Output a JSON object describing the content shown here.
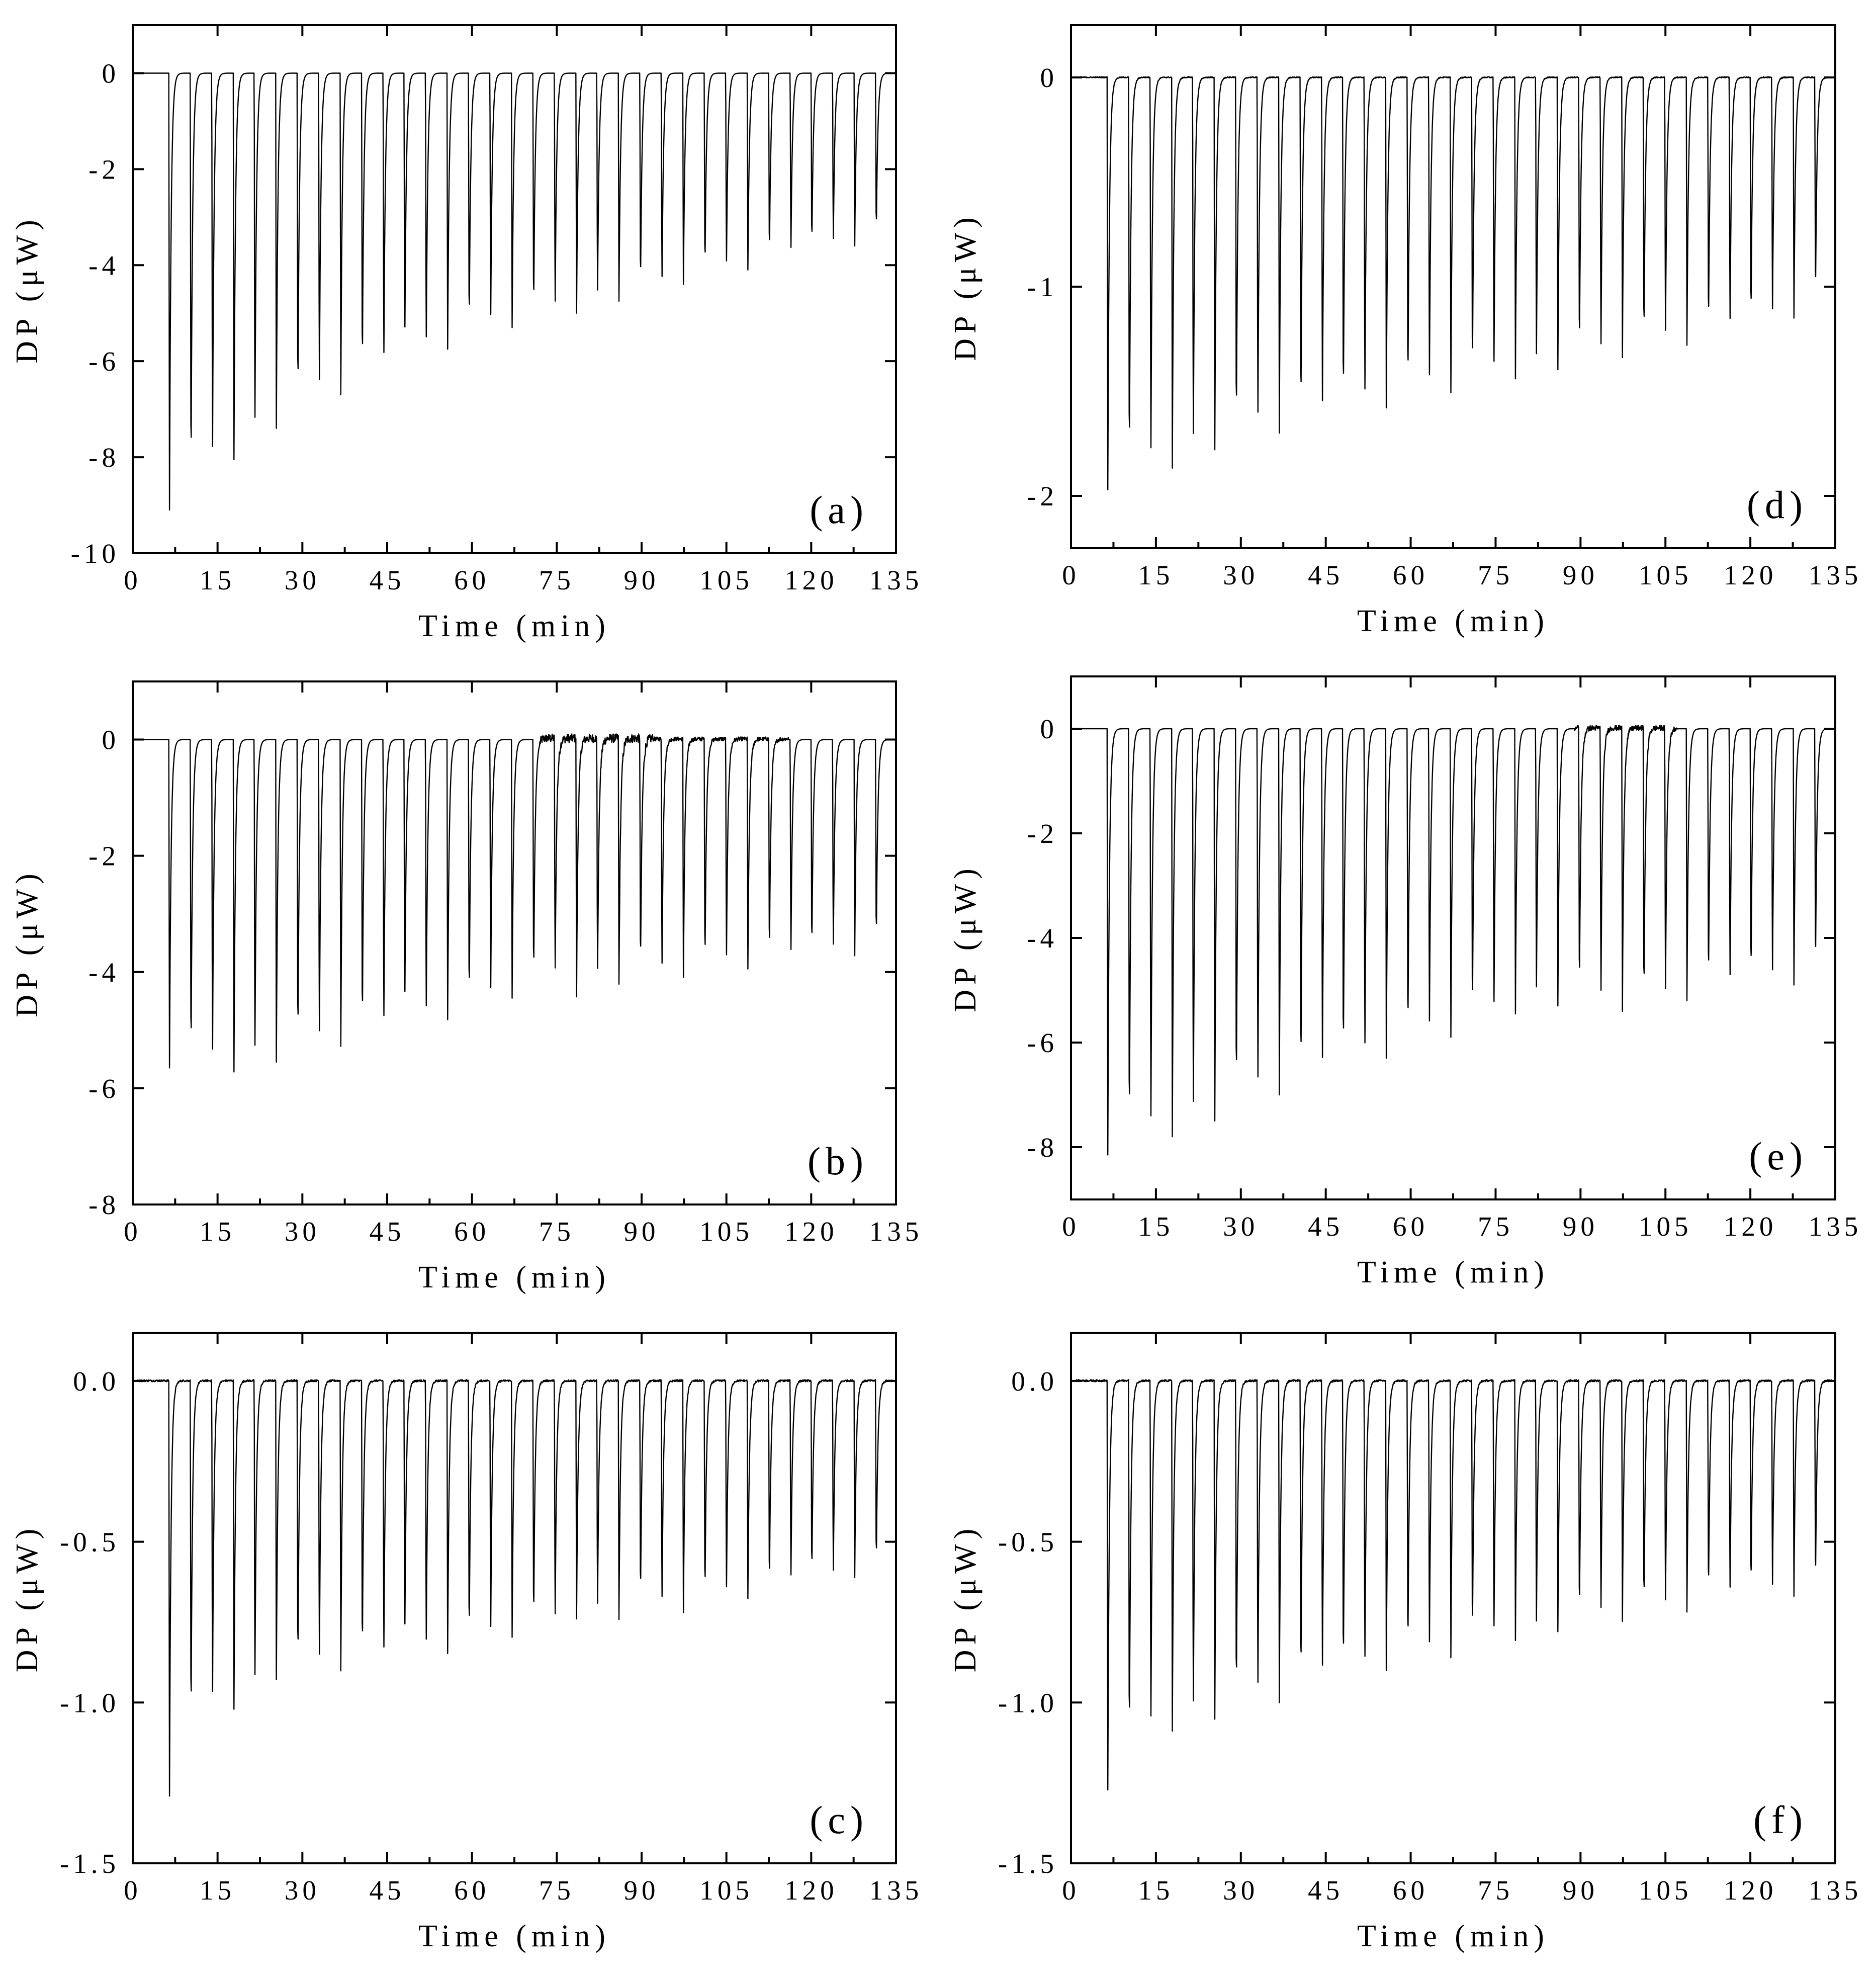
{
  "chart_data": [
    {
      "type": "line",
      "panel_label": "(a)",
      "xlabel": "Time (min)",
      "ylabel": "DP (μW)",
      "xlim": [
        0,
        135
      ],
      "ylim": [
        -10,
        1
      ],
      "xticks": [
        0,
        15,
        30,
        45,
        60,
        75,
        90,
        105,
        120,
        135
      ],
      "yticks": [
        0,
        -2,
        -4,
        -6,
        -8,
        -10
      ],
      "yticklabels": [
        "0",
        "-2",
        "-4",
        "-6",
        "-8",
        "-10"
      ],
      "baseline": 0,
      "noise": [],
      "peaks": {
        "t": [
          6.5,
          10.3,
          14.1,
          17.9,
          21.6,
          25.4,
          29.2,
          33.0,
          36.8,
          40.6,
          44.4,
          48.1,
          51.9,
          55.7,
          59.5,
          63.3,
          67.1,
          70.9,
          74.7,
          78.5,
          82.2,
          86.0,
          89.8,
          93.6,
          97.4,
          101.2,
          105.0,
          108.8,
          112.6,
          116.4,
          120.1,
          123.9,
          127.7,
          131.5
        ],
        "depth": [
          -9.1,
          -8.75,
          -8.35,
          -8.05,
          -7.7,
          -7.4,
          -7.1,
          -6.85,
          -6.7,
          -6.5,
          -6.25,
          -6.1,
          -5.9,
          -5.75,
          -5.55,
          -5.4,
          -5.3,
          -5.2,
          -5.1,
          -5.0,
          -4.85,
          -4.75,
          -4.65,
          -4.55,
          -4.4,
          -4.3,
          -4.2,
          -4.1,
          -4.0,
          -3.9,
          -3.8,
          -3.7,
          -3.6,
          -3.5
        ]
      }
    },
    {
      "type": "line",
      "panel_label": "(b)",
      "xlabel": "Time (min)",
      "ylabel": "DP (μW)",
      "xlim": [
        0,
        135
      ],
      "ylim": [
        -8,
        1
      ],
      "xticks": [
        0,
        15,
        30,
        45,
        60,
        75,
        90,
        105,
        120,
        135
      ],
      "yticks": [
        0,
        -2,
        -4,
        -6,
        -8
      ],
      "yticklabels": [
        "0",
        "-2",
        "-4",
        "-6",
        "-8"
      ],
      "baseline": 0,
      "noise": [
        [
          72,
          92,
          0.15
        ],
        [
          92,
          116,
          0.07
        ]
      ],
      "peaks": {
        "t": [
          6.5,
          10.3,
          14.1,
          17.9,
          21.6,
          25.4,
          29.2,
          33.0,
          36.8,
          40.6,
          44.4,
          48.1,
          51.9,
          55.7,
          59.5,
          63.3,
          67.1,
          70.9,
          74.7,
          78.5,
          82.2,
          86.0,
          89.8,
          93.6,
          97.4,
          101.2,
          105.0,
          108.8,
          112.6,
          116.4,
          120.1,
          123.9,
          127.7,
          131.5
        ],
        "depth": [
          -5.65,
          -5.72,
          -5.72,
          -5.72,
          -5.65,
          -5.55,
          -5.45,
          -5.38,
          -5.28,
          -5.18,
          -5.1,
          -5.0,
          -4.92,
          -4.82,
          -4.72,
          -4.58,
          -4.45,
          -4.32,
          -4.3,
          -4.42,
          -4.32,
          -4.25,
          -4.2,
          -4.15,
          -4.1,
          -4.05,
          -4.0,
          -3.95,
          -3.92,
          -3.88,
          -3.83,
          -3.78,
          -3.72,
          -3.65
        ]
      }
    },
    {
      "type": "line",
      "panel_label": "(c)",
      "xlabel": "Time (min)",
      "ylabel": "DP (μW)",
      "xlim": [
        0,
        135
      ],
      "ylim": [
        -1.5,
        0.15
      ],
      "xticks": [
        0,
        15,
        30,
        45,
        60,
        75,
        90,
        105,
        120,
        135
      ],
      "yticks": [
        0.0,
        -0.5,
        -1.0,
        -1.5
      ],
      "yticklabels": [
        "0.0",
        "-0.5",
        "-1.0",
        "-1.5"
      ],
      "baseline": 0,
      "noise": [
        [
          0,
          135,
          0.006
        ]
      ],
      "peaks": {
        "t": [
          6.5,
          10.3,
          14.1,
          17.9,
          21.6,
          25.4,
          29.2,
          33.0,
          36.8,
          40.6,
          44.4,
          48.1,
          51.9,
          55.7,
          59.5,
          63.3,
          67.1,
          70.9,
          74.7,
          78.5,
          82.2,
          86.0,
          89.8,
          93.6,
          97.4,
          101.2,
          105.0,
          108.8,
          112.6,
          116.4,
          120.1,
          123.9,
          127.7,
          131.5
        ],
        "depth": [
          -1.29,
          -1.11,
          -1.04,
          -1.02,
          -0.98,
          -0.93,
          -0.93,
          -0.91,
          -0.9,
          -0.9,
          -0.89,
          -0.87,
          -0.86,
          -0.85,
          -0.84,
          -0.82,
          -0.8,
          -0.79,
          -0.78,
          -0.74,
          -0.74,
          -0.74,
          -0.71,
          -0.72,
          -0.72,
          -0.7,
          -0.69,
          -0.68,
          -0.67,
          -0.65,
          -0.64,
          -0.63,
          -0.61,
          -0.6
        ]
      }
    },
    {
      "type": "line",
      "panel_label": "(d)",
      "xlabel": "Time (min)",
      "ylabel": "DP (μW)",
      "xlim": [
        0,
        135
      ],
      "ylim": [
        -2.25,
        0.25
      ],
      "xticks": [
        0,
        15,
        30,
        45,
        60,
        75,
        90,
        105,
        120,
        135
      ],
      "yticks": [
        0,
        -1,
        -2
      ],
      "yticklabels": [
        "0",
        "-1",
        "-2"
      ],
      "baseline": 0,
      "noise": [
        [
          0,
          135,
          0.005
        ]
      ],
      "peaks": {
        "t": [
          6.5,
          10.3,
          14.1,
          17.9,
          21.6,
          25.4,
          29.2,
          33.0,
          36.8,
          40.6,
          44.4,
          48.1,
          51.9,
          55.7,
          59.5,
          63.3,
          67.1,
          70.9,
          74.7,
          78.5,
          82.2,
          86.0,
          89.8,
          93.6,
          97.4,
          101.2,
          105.0,
          108.8,
          112.6,
          116.4,
          120.1,
          123.9,
          127.7,
          131.5
        ],
        "depth": [
          -1.97,
          -1.93,
          -1.9,
          -1.87,
          -1.83,
          -1.78,
          -1.75,
          -1.72,
          -1.7,
          -1.68,
          -1.66,
          -1.63,
          -1.6,
          -1.58,
          -1.56,
          -1.53,
          -1.51,
          -1.49,
          -1.46,
          -1.44,
          -1.42,
          -1.4,
          -1.38,
          -1.37,
          -1.34,
          -1.32,
          -1.3,
          -1.28,
          -1.26,
          -1.24,
          -1.22,
          -1.19,
          -1.15,
          -1.1
        ]
      }
    },
    {
      "type": "line",
      "panel_label": "(e)",
      "xlabel": "Time (min)",
      "ylabel": "DP (μW)",
      "xlim": [
        0,
        135
      ],
      "ylim": [
        -9,
        1
      ],
      "xticks": [
        0,
        15,
        30,
        45,
        60,
        75,
        90,
        105,
        120,
        135
      ],
      "yticks": [
        0,
        -2,
        -4,
        -6,
        -8
      ],
      "yticklabels": [
        "0",
        "-2",
        "-4",
        "-6",
        "-8"
      ],
      "baseline": 0,
      "noise": [
        [
          89,
          107,
          0.1
        ]
      ],
      "peaks": {
        "t": [
          6.5,
          10.3,
          14.1,
          17.9,
          21.6,
          25.4,
          29.2,
          33.0,
          36.8,
          40.6,
          44.4,
          48.1,
          51.9,
          55.7,
          59.5,
          63.3,
          67.1,
          70.9,
          74.7,
          78.5,
          82.2,
          86.0,
          89.8,
          93.6,
          97.4,
          101.2,
          105.0,
          108.8,
          112.6,
          116.4,
          120.1,
          123.9,
          127.7,
          131.5
        ],
        "depth": [
          -8.15,
          -8.05,
          -7.95,
          -7.8,
          -7.65,
          -7.5,
          -7.3,
          -7.15,
          -7.0,
          -6.9,
          -6.75,
          -6.6,
          -6.45,
          -6.3,
          -6.15,
          -6.0,
          -5.9,
          -5.75,
          -5.6,
          -5.45,
          -5.3,
          -5.3,
          -5.3,
          -5.35,
          -5.4,
          -5.45,
          -5.35,
          -5.2,
          -5.1,
          -5.05,
          -5.0,
          -4.95,
          -4.9,
          -4.8
        ]
      }
    },
    {
      "type": "line",
      "panel_label": "(f)",
      "xlabel": "Time (min)",
      "ylabel": "DP (μW)",
      "xlim": [
        0,
        135
      ],
      "ylim": [
        -1.5,
        0.15
      ],
      "xticks": [
        0,
        15,
        30,
        45,
        60,
        75,
        90,
        105,
        120,
        135
      ],
      "yticks": [
        0.0,
        -0.5,
        -1.0,
        -1.5
      ],
      "yticklabels": [
        "0.0",
        "-0.5",
        "-1.0",
        "-1.5"
      ],
      "baseline": 0,
      "noise": [
        [
          0,
          135,
          0.006
        ]
      ],
      "peaks": {
        "t": [
          6.5,
          10.3,
          14.1,
          17.9,
          21.6,
          25.4,
          29.2,
          33.0,
          36.8,
          40.6,
          44.4,
          48.1,
          51.9,
          55.7,
          59.5,
          63.3,
          67.1,
          70.9,
          74.7,
          78.5,
          82.2,
          86.0,
          89.8,
          93.6,
          97.4,
          101.2,
          105.0,
          108.8,
          112.6,
          116.4,
          120.1,
          123.9,
          127.7,
          131.5
        ],
        "depth": [
          -1.27,
          -1.17,
          -1.12,
          -1.09,
          -1.07,
          -1.05,
          -1.03,
          -1.01,
          -1.0,
          -0.97,
          -0.95,
          -0.94,
          -0.92,
          -0.9,
          -0.88,
          -0.87,
          -0.86,
          -0.84,
          -0.82,
          -0.81,
          -0.8,
          -0.78,
          -0.77,
          -0.76,
          -0.75,
          -0.74,
          -0.73,
          -0.72,
          -0.7,
          -0.69,
          -0.68,
          -0.68,
          -0.67,
          -0.66
        ]
      }
    }
  ]
}
